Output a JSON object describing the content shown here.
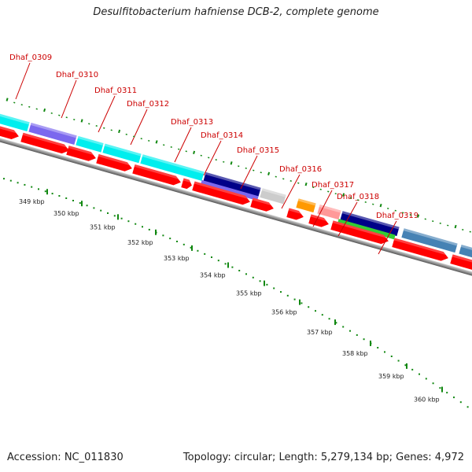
{
  "title": "Desulfitobacterium hafniense DCB-2, complete genome",
  "footer": {
    "accession": "Accession: NC_011830",
    "summary": "Topology: circular; Length: 5,279,134 bp; Genes: 4,972"
  },
  "colors": {
    "leader": "#cc0000",
    "tick": "#118811",
    "backbone": "#888888",
    "cds": "#ff0000"
  },
  "gene_labels": [
    "Dhaf_0309",
    "Dhaf_0310",
    "Dhaf_0311",
    "Dhaf_0312",
    "Dhaf_0313",
    "Dhaf_0314",
    "Dhaf_0315",
    "Dhaf_0316",
    "Dhaf_0317",
    "Dhaf_0318",
    "Dhaf_0319"
  ],
  "kbp_ticks": [
    "349 kbp",
    "350 kbp",
    "351 kbp",
    "352 kbp",
    "353 kbp",
    "354 kbp",
    "355 kbp",
    "356 kbp",
    "357 kbp",
    "358 kbp",
    "359 kbp",
    "360 kbp"
  ]
}
